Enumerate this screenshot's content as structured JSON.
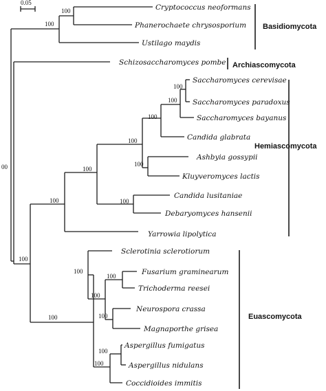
{
  "scale_bar": {
    "label": "0.05"
  },
  "root_support": "00",
  "taxa": [
    "Cryptococcus neoformans",
    "Phanerochaete chrysosporium",
    "Ustilago maydis",
    "Schizosaccharomyces pombe",
    "Saccharomyces cerevisae",
    "Saccharomyces paradoxus",
    "Saccharomyces bayanus",
    "Candida glabrata",
    "Ashbyia gossypii",
    "Kluyveromyces lactis",
    "Candida lusitaniae",
    "Debaryomyces hansenii",
    "Yarrowia lipolytica",
    "Sclerotinia sclerotiorum",
    "Fusarium graminearum",
    "Trichoderma reesei",
    "Neurospora crassa",
    "Magnaporthe grisea",
    "Aspergillus fumigatus",
    "Aspergillus nidulans",
    "Coccidioides immitis"
  ],
  "clades": [
    {
      "name": "Basidiomycota"
    },
    {
      "name": "Archiascomycota"
    },
    {
      "name": "Hemiascomycota"
    },
    {
      "name": "Euascomycota"
    }
  ],
  "support_values": [
    "100",
    "100",
    "100",
    "100",
    "100",
    "100",
    "100",
    "100",
    "100",
    "100",
    "100",
    "100",
    "100",
    "100",
    "100",
    "100",
    "100",
    "100"
  ]
}
